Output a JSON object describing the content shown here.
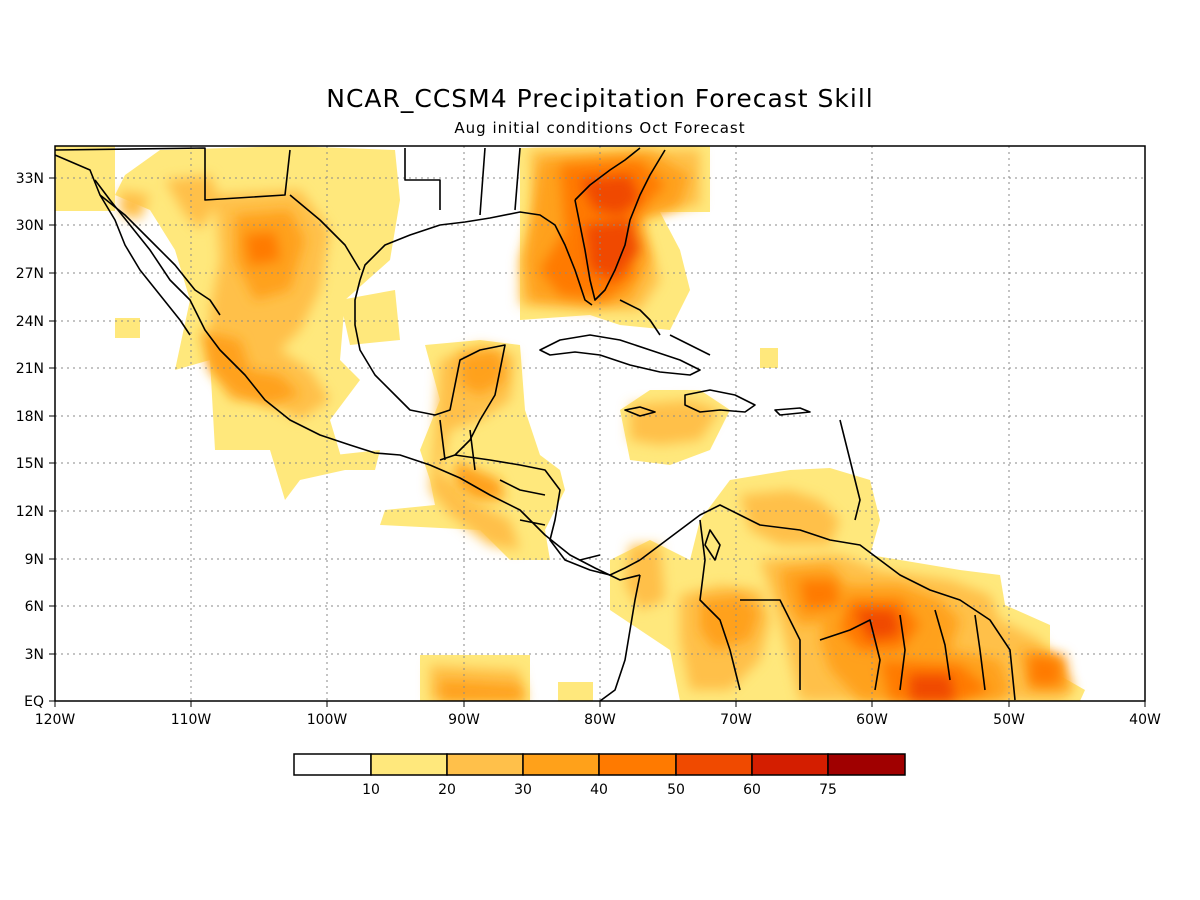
{
  "title": "NCAR_CCSM4 Precipitation Forecast Skill",
  "subtitle": "Aug initial conditions  Oct Forecast",
  "map": {
    "lon_range": [
      -120,
      -40
    ],
    "lat_range": [
      0,
      35
    ],
    "x_ticks": [
      "120W",
      "110W",
      "100W",
      "90W",
      "80W",
      "70W",
      "60W",
      "50W",
      "40W"
    ],
    "y_ticks": [
      "EQ",
      "3N",
      "6N",
      "9N",
      "12N",
      "15N",
      "18N",
      "21N",
      "24N",
      "27N",
      "30N",
      "33N"
    ],
    "grid": "dotted"
  },
  "colorbar": {
    "labels": [
      "10",
      "20",
      "30",
      "40",
      "50",
      "60",
      "75"
    ],
    "colors": [
      "#ffffff",
      "#ffe87c",
      "#ffc04a",
      "#ffa11a",
      "#ff7a00",
      "#f04a00",
      "#d41e00",
      "#a00000"
    ]
  }
}
